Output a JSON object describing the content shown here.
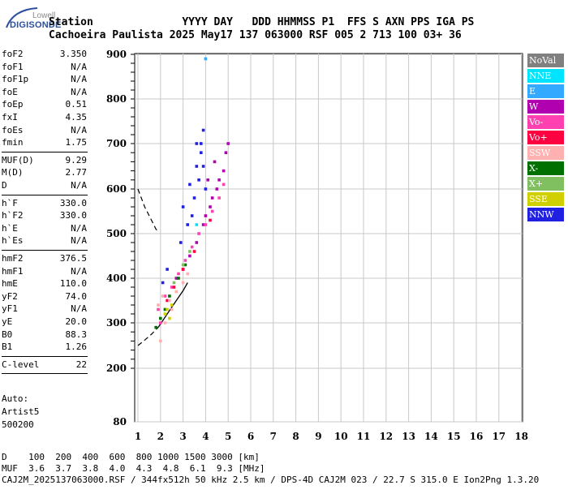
{
  "logo": {
    "top": "Lowell",
    "main": "DIGISONDE"
  },
  "header": {
    "labels": "Station              YYYY DAY   DDD HHMMSS P1  FFS S AXN PPS IGA PS",
    "values": "Cachoeira Paulista 2025 May17 137 063000 RSF 005 2 713 100 03+ 36"
  },
  "params": [
    {
      "k": "foF2",
      "v": "3.350"
    },
    {
      "k": "foF1",
      "v": "N/A"
    },
    {
      "k": "foF1p",
      "v": "N/A"
    },
    {
      "k": "foE",
      "v": "N/A"
    },
    {
      "k": "foEp",
      "v": "0.51"
    },
    {
      "k": "fxI",
      "v": "4.35"
    },
    {
      "k": "foEs",
      "v": "N/A"
    },
    {
      "k": "fmin",
      "v": "1.75"
    },
    {
      "k": "MUF(D)",
      "v": "9.29"
    },
    {
      "k": "M(D)",
      "v": "2.77"
    },
    {
      "k": "D",
      "v": "N/A"
    },
    {
      "k": "h`F",
      "v": "330.0"
    },
    {
      "k": "h`F2",
      "v": "330.0"
    },
    {
      "k": "h`E",
      "v": "N/A"
    },
    {
      "k": "h`Es",
      "v": "N/A"
    },
    {
      "k": "hmF2",
      "v": "376.5"
    },
    {
      "k": "hmF1",
      "v": "N/A"
    },
    {
      "k": "hmE",
      "v": "110.0"
    },
    {
      "k": "yF2",
      "v": "74.0"
    },
    {
      "k": "yF1",
      "v": "N/A"
    },
    {
      "k": "yE",
      "v": "20.0"
    },
    {
      "k": "B0",
      "v": "88.3"
    },
    {
      "k": "B1",
      "v": "1.26"
    },
    {
      "k": "C-level",
      "v": "22"
    }
  ],
  "auto": [
    "Auto:",
    "Artist5",
    "500200"
  ],
  "legend": [
    {
      "label": "NoVal",
      "color": "#808080"
    },
    {
      "label": "NNE",
      "color": "#00e5ff"
    },
    {
      "label": "E",
      "color": "#33aaff"
    },
    {
      "label": "W",
      "color": "#b000b0"
    },
    {
      "label": "Vo-",
      "color": "#ff40b0"
    },
    {
      "label": "Vo+",
      "color": "#ff0040"
    },
    {
      "label": "SSW",
      "color": "#ffb0b0"
    },
    {
      "label": "X-",
      "color": "#007000"
    },
    {
      "label": "X+",
      "color": "#80c060"
    },
    {
      "label": "SSE",
      "color": "#d0d000"
    },
    {
      "label": "NNW",
      "color": "#2020e0"
    }
  ],
  "footer": {
    "d_row": "D    100  200  400  600  800 1000 1500 3000 [km]",
    "muf_row": "MUF  3.6  3.7  3.8  4.0  4.3  4.8  6.1  9.3 [MHz]",
    "file_row": "CAJ2M_2025137063000.RSF / 344fx512h 50 kHz 2.5 km / DPS-4D CAJ2M 023 / 22.7 S 315.0 E Ion2Png 1.3.20"
  },
  "chart_data": {
    "type": "scatter",
    "x_ticks": [
      1,
      2,
      3,
      4,
      5,
      6,
      7,
      8,
      9,
      10,
      11,
      12,
      13,
      14,
      15,
      16,
      17,
      18
    ],
    "y_ticks": [
      80,
      200,
      300,
      400,
      500,
      600,
      700,
      800,
      900
    ],
    "xlim": [
      0.95,
      18
    ],
    "ylim": [
      80,
      900
    ],
    "grid": true,
    "series": [
      {
        "name": "NNW",
        "color": "#2020e0",
        "points": [
          [
            3.0,
            560
          ],
          [
            3.3,
            610
          ],
          [
            3.6,
            650
          ],
          [
            3.8,
            700
          ],
          [
            3.9,
            730
          ],
          [
            3.5,
            580
          ],
          [
            3.2,
            520
          ],
          [
            2.9,
            480
          ],
          [
            3.7,
            620
          ],
          [
            4.0,
            600
          ],
          [
            3.4,
            540
          ],
          [
            3.8,
            680
          ],
          [
            3.6,
            700
          ],
          [
            3.9,
            650
          ],
          [
            2.1,
            390
          ],
          [
            2.3,
            420
          ]
        ]
      },
      {
        "name": "W",
        "color": "#b000b0",
        "points": [
          [
            3.9,
            520
          ],
          [
            4.2,
            560
          ],
          [
            4.5,
            600
          ],
          [
            4.8,
            640
          ],
          [
            5.0,
            700
          ],
          [
            4.6,
            620
          ],
          [
            4.3,
            580
          ],
          [
            4.0,
            540
          ],
          [
            3.6,
            480
          ],
          [
            3.3,
            450
          ],
          [
            3.0,
            420
          ],
          [
            2.7,
            400
          ],
          [
            4.9,
            680
          ],
          [
            4.4,
            660
          ],
          [
            4.1,
            620
          ]
        ]
      },
      {
        "name": "Vo-",
        "color": "#ff40b0",
        "points": [
          [
            2.2,
            360
          ],
          [
            2.5,
            380
          ],
          [
            2.8,
            410
          ],
          [
            3.1,
            440
          ],
          [
            3.4,
            470
          ],
          [
            3.7,
            500
          ],
          [
            4.0,
            520
          ],
          [
            4.3,
            550
          ],
          [
            4.6,
            580
          ],
          [
            1.9,
            330
          ],
          [
            4.8,
            610
          ],
          [
            2.0,
            300
          ]
        ]
      },
      {
        "name": "Vo+",
        "color": "#ff0040",
        "points": [
          [
            2.6,
            380
          ],
          [
            3.0,
            420
          ],
          [
            3.5,
            460
          ],
          [
            4.2,
            530
          ],
          [
            2.3,
            350
          ]
        ]
      },
      {
        "name": "SSW",
        "color": "#ffb0b0",
        "points": [
          [
            1.9,
            340
          ],
          [
            2.1,
            360
          ],
          [
            2.4,
            350
          ],
          [
            2.7,
            370
          ],
          [
            3.0,
            390
          ],
          [
            3.2,
            410
          ],
          [
            2.0,
            260
          ],
          [
            2.2,
            300
          ],
          [
            2.5,
            330
          ]
        ]
      },
      {
        "name": "X-",
        "color": "#007000",
        "points": [
          [
            2.0,
            310
          ],
          [
            2.4,
            360
          ],
          [
            2.8,
            400
          ],
          [
            3.1,
            430
          ],
          [
            2.2,
            330
          ],
          [
            1.8,
            290
          ]
        ]
      },
      {
        "name": "X+",
        "color": "#80c060",
        "points": [
          [
            2.6,
            390
          ],
          [
            3.0,
            430
          ],
          [
            3.3,
            460
          ]
        ]
      },
      {
        "name": "SSE",
        "color": "#d0d000",
        "points": [
          [
            2.2,
            320
          ],
          [
            2.5,
            340
          ],
          [
            2.4,
            310
          ],
          [
            2.3,
            330
          ]
        ]
      },
      {
        "name": "NNE",
        "color": "#00e5ff",
        "points": [
          [
            3.6,
            520
          ]
        ]
      },
      {
        "name": "E",
        "color": "#33aaff",
        "points": [
          [
            4.0,
            890
          ]
        ]
      }
    ],
    "profile_dashed_upper": [
      [
        1.0,
        600
      ],
      [
        1.3,
        560
      ],
      [
        1.6,
        530
      ],
      [
        1.8,
        510
      ],
      [
        1.9,
        505
      ]
    ],
    "profile_dashed_lower": [
      [
        1.0,
        250
      ],
      [
        1.3,
        262
      ],
      [
        1.6,
        275
      ],
      [
        1.9,
        290
      ]
    ],
    "profile_solid": [
      [
        1.9,
        290
      ],
      [
        2.3,
        320
      ],
      [
        2.7,
        350
      ],
      [
        3.0,
        372
      ],
      [
        3.2,
        390
      ]
    ]
  }
}
